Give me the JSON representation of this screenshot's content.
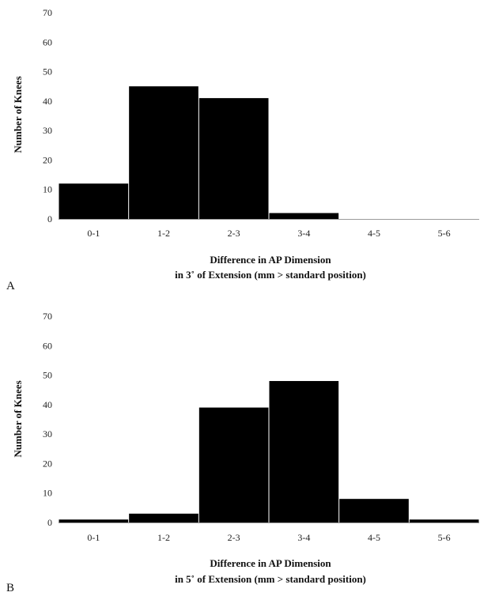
{
  "chart_data": [
    {
      "type": "bar",
      "panel_label": "A",
      "categories": [
        "0-1",
        "1-2",
        "2-3",
        "3-4",
        "4-5",
        "5-6"
      ],
      "values": [
        12,
        45,
        41,
        2,
        0,
        0
      ],
      "ylabel": "Number of Knees",
      "xlabel_line1": "Difference in AP Dimension",
      "xlabel_line2": "in 3˚ of Extension (mm > standard position)",
      "ylim": [
        0,
        70
      ],
      "yticks": [
        0,
        10,
        20,
        30,
        40,
        50,
        60,
        70
      ],
      "grid": false,
      "bar_color": "#000000"
    },
    {
      "type": "bar",
      "panel_label": "B",
      "categories": [
        "0-1",
        "1-2",
        "2-3",
        "3-4",
        "4-5",
        "5-6"
      ],
      "values": [
        1,
        3,
        39,
        48,
        8,
        1
      ],
      "ylabel": "Number of Knees",
      "xlabel_line1": "Difference in AP Dimension",
      "xlabel_line2": "in 5˚ of Extension (mm > standard position)",
      "ylim": [
        0,
        70
      ],
      "yticks": [
        0,
        10,
        20,
        30,
        40,
        50,
        60,
        70
      ],
      "grid": false,
      "bar_color": "#000000"
    }
  ]
}
